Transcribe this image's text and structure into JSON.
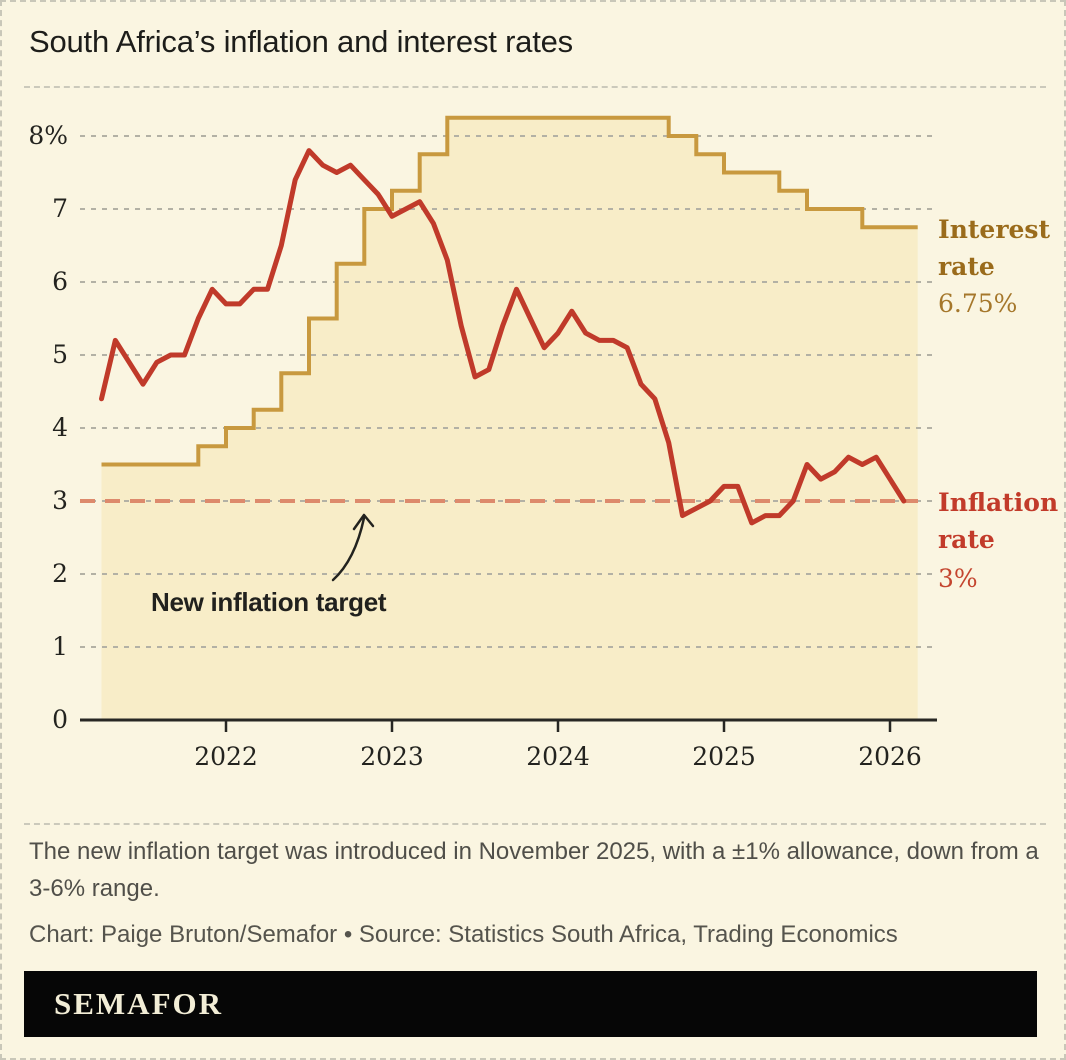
{
  "header": {
    "title": "South Africa’s inflation and interest rates"
  },
  "chart_data": {
    "type": "line",
    "title": "South Africa’s inflation and interest rates",
    "xlabel": "",
    "ylabel": "Percent",
    "ylim": [
      0,
      8.6
    ],
    "x_range": [
      "2021-04",
      "2026-03"
    ],
    "grid": true,
    "y_ticks": [
      {
        "v": 8,
        "label": "8%"
      },
      {
        "v": 7,
        "label": "7"
      },
      {
        "v": 6,
        "label": "6"
      },
      {
        "v": 5,
        "label": "5"
      },
      {
        "v": 4,
        "label": "4"
      },
      {
        "v": 3,
        "label": "3"
      },
      {
        "v": 2,
        "label": "2"
      },
      {
        "v": 1,
        "label": "1"
      },
      {
        "v": 0,
        "label": "0"
      }
    ],
    "x_ticks": [
      {
        "t": "2022-01",
        "label": "2022"
      },
      {
        "t": "2023-01",
        "label": "2023"
      },
      {
        "t": "2024-01",
        "label": "2024"
      },
      {
        "t": "2025-01",
        "label": "2025"
      },
      {
        "t": "2026-01",
        "label": "2026"
      }
    ],
    "series": [
      {
        "name": "Interest rate",
        "style": "step",
        "color": "#c8993f",
        "fill": "#f8edc8",
        "end": "2026-03",
        "latest": "6.75%",
        "changes": [
          [
            "2021-04",
            3.5
          ],
          [
            "2021-11",
            3.75
          ],
          [
            "2022-01",
            4.0
          ],
          [
            "2022-03",
            4.25
          ],
          [
            "2022-05",
            4.75
          ],
          [
            "2022-07",
            5.5
          ],
          [
            "2022-09",
            6.25
          ],
          [
            "2022-11",
            7.0
          ],
          [
            "2023-01",
            7.25
          ],
          [
            "2023-03",
            7.75
          ],
          [
            "2023-05",
            8.25
          ],
          [
            "2024-09",
            8.0
          ],
          [
            "2024-11",
            7.75
          ],
          [
            "2025-01",
            7.5
          ],
          [
            "2025-05",
            7.25
          ],
          [
            "2025-07",
            7.0
          ],
          [
            "2025-11",
            6.75
          ]
        ]
      },
      {
        "name": "Inflation rate",
        "style": "line",
        "color": "#c03a2a",
        "start": "2021-04",
        "latest": "3%",
        "values": [
          4.4,
          5.2,
          4.9,
          4.6,
          4.9,
          5.0,
          5.0,
          5.5,
          5.9,
          5.7,
          5.7,
          5.9,
          5.9,
          6.5,
          7.4,
          7.8,
          7.6,
          7.5,
          7.6,
          7.4,
          7.2,
          6.9,
          7.0,
          7.1,
          6.8,
          6.3,
          5.4,
          4.7,
          4.8,
          5.4,
          5.9,
          5.5,
          5.1,
          5.3,
          5.6,
          5.3,
          5.2,
          5.2,
          5.1,
          4.6,
          4.4,
          3.8,
          2.8,
          2.9,
          3.0,
          3.2,
          3.2,
          2.7,
          2.8,
          2.8,
          3.0,
          3.5,
          3.3,
          3.4,
          3.6,
          3.5,
          3.6,
          3.3,
          3.0
        ]
      }
    ],
    "target_line": {
      "value": 3,
      "label": "New inflation target",
      "color": "#dd8a6c"
    }
  },
  "labels": {
    "interest": {
      "line1": "Interest",
      "line2": "rate",
      "value": "6.75%"
    },
    "inflation": {
      "line1": "Inflation",
      "line2": "rate",
      "value": "3%"
    },
    "annotation": "New inflation target"
  },
  "footer": {
    "note": "The new inflation target was introduced in November 2025, with a ±1% allowance, down from a 3-6% range.",
    "credit": "Chart: Paige Bruton/Semafor • Source: Statistics South Africa, Trading Economics",
    "logo": "SEMAFOR"
  },
  "colors": {
    "background": "#faf5e1",
    "area_fill": "#f8edc8",
    "interest_line": "#c8993f",
    "interest_label": "#9a6b1b",
    "inflation_line": "#c03a2a",
    "inflation_label": "#c23b2a",
    "target_dash": "#dd8a6c",
    "gridline": "#b3b1a5",
    "axis": "#272723",
    "logo_bar": "#060606",
    "logo_text": "#f2edd6"
  }
}
